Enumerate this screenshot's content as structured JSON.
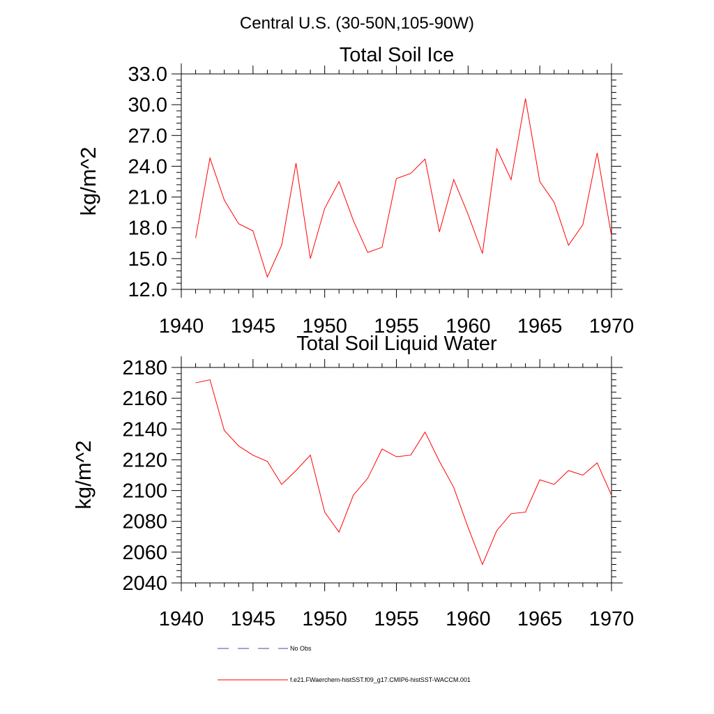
{
  "suptitle": "Central U.S. (30-50N,105-90W)",
  "colors": {
    "series": "#ff0000",
    "obs": "#4a4a8c",
    "axis": "#000000"
  },
  "legend": [
    {
      "label": "No Obs",
      "style": "dashed",
      "color": "#4a4a8c"
    },
    {
      "label": "f.e21.FWaerchem-histSST.f09_g17.CMIP6-histSST-WACCM.001",
      "style": "solid",
      "color": "#ff0000"
    }
  ],
  "chart_data": [
    {
      "type": "line",
      "title": "Total Soil Ice",
      "xlabel": "",
      "ylabel": "kg/m^2",
      "xlim": [
        1940,
        1970
      ],
      "ylim": [
        12,
        33
      ],
      "xticks": [
        1940,
        1945,
        1950,
        1955,
        1960,
        1965,
        1970
      ],
      "xtick_labels": [
        "1940",
        "1945",
        "1950",
        "1955",
        "1960",
        "1965",
        "1970"
      ],
      "yticks": [
        12,
        15,
        18,
        21,
        24,
        27,
        30,
        33
      ],
      "ytick_labels": [
        "12.0",
        "15.0",
        "18.0",
        "21.0",
        "24.0",
        "27.0",
        "30.0",
        "33.0"
      ],
      "grid": false,
      "x": [
        1941,
        1942,
        1943,
        1944,
        1945,
        1946,
        1947,
        1948,
        1949,
        1950,
        1951,
        1952,
        1953,
        1954,
        1955,
        1956,
        1957,
        1958,
        1959,
        1960,
        1961,
        1962,
        1963,
        1964,
        1965,
        1966,
        1967,
        1968,
        1969,
        1970
      ],
      "series": [
        {
          "values": [
            17.0,
            24.8,
            20.7,
            18.4,
            17.7,
            13.2,
            16.3,
            24.3,
            15.0,
            19.9,
            22.5,
            18.7,
            15.6,
            16.1,
            22.8,
            23.3,
            24.7,
            17.6,
            22.7,
            19.3,
            15.5,
            25.7,
            22.7,
            30.6,
            22.5,
            20.5,
            16.3,
            18.3,
            25.3,
            17.2
          ]
        }
      ]
    },
    {
      "type": "line",
      "title": "Total Soil Liquid Water",
      "xlabel": "",
      "ylabel": "kg/m^2",
      "xlim": [
        1940,
        1970
      ],
      "ylim": [
        2040,
        2180
      ],
      "xticks": [
        1940,
        1945,
        1950,
        1955,
        1960,
        1965,
        1970
      ],
      "xtick_labels": [
        "1940",
        "1945",
        "1950",
        "1955",
        "1960",
        "1965",
        "1970"
      ],
      "yticks": [
        2040,
        2060,
        2080,
        2100,
        2120,
        2140,
        2160,
        2180
      ],
      "ytick_labels": [
        "2040",
        "2060",
        "2080",
        "2100",
        "2120",
        "2140",
        "2160",
        "2180"
      ],
      "grid": false,
      "x": [
        1941,
        1942,
        1943,
        1944,
        1945,
        1946,
        1947,
        1948,
        1949,
        1950,
        1951,
        1952,
        1953,
        1954,
        1955,
        1956,
        1957,
        1958,
        1959,
        1960,
        1961,
        1962,
        1963,
        1964,
        1965,
        1966,
        1967,
        1968,
        1969,
        1970
      ],
      "series": [
        {
          "values": [
            2170,
            2172,
            2139,
            2129,
            2123,
            2119,
            2104,
            2113,
            2123,
            2086,
            2073,
            2097,
            2108,
            2127,
            2122,
            2123,
            2138,
            2119,
            2102,
            2076,
            2052,
            2074,
            2085,
            2086,
            2107,
            2104,
            2113,
            2110,
            2118,
            2097
          ]
        }
      ]
    }
  ]
}
